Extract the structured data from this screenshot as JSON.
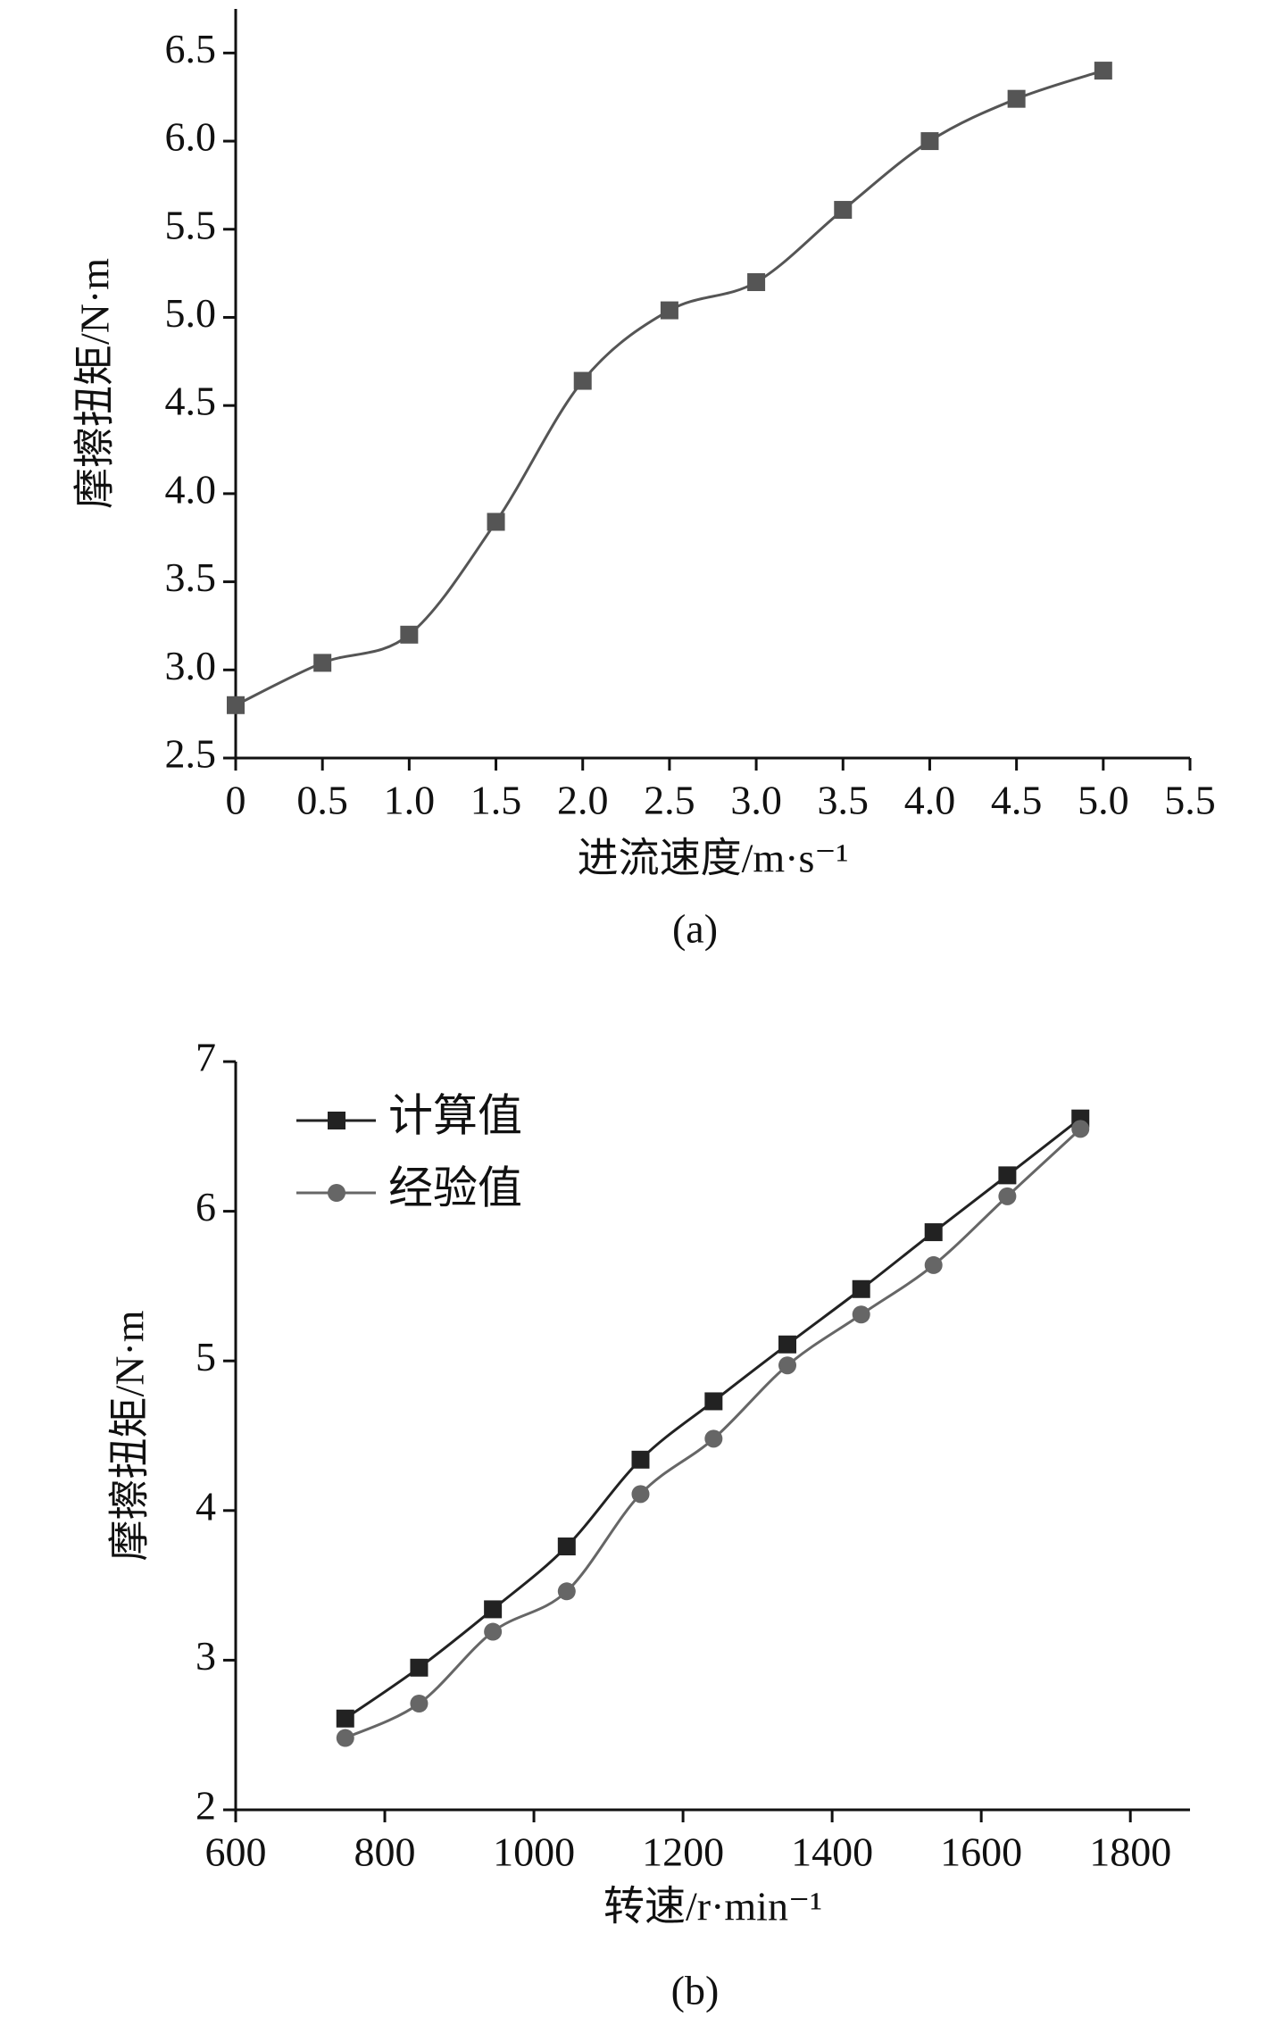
{
  "chart_data": [
    {
      "type": "line",
      "smooth": true,
      "xlabel": "进流速度/m·s⁻¹",
      "ylabel": "摩擦扭矩/N·m",
      "caption": "(a)",
      "x": [
        0,
        0.5,
        1,
        1.5,
        2,
        2.5,
        3,
        3.5,
        4,
        4.5,
        5
      ],
      "values": [
        2.8,
        3.04,
        3.2,
        3.84,
        4.64,
        5.04,
        5.2,
        5.61,
        6.0,
        6.24,
        6.4
      ],
      "color": "#555555",
      "marker": "square",
      "xlim": [
        0,
        5.5
      ],
      "xticks": [
        0,
        0.5,
        {
          "value": 1,
          "label": "1.0"
        },
        1.5,
        {
          "value": 2,
          "label": "2.0"
        },
        2.5,
        {
          "value": 3,
          "label": "3.0"
        },
        3.5,
        {
          "value": 4,
          "label": "4.0"
        },
        4.5,
        {
          "value": 5,
          "label": "5.0"
        },
        5.5
      ],
      "ylim": [
        2.5,
        6.75
      ],
      "yticks": [
        2.5,
        {
          "value": 3,
          "label": "3.0"
        },
        3.5,
        {
          "value": 4,
          "label": "4.0"
        },
        4.5,
        {
          "value": 5,
          "label": "5.0"
        },
        5.5,
        {
          "value": 6,
          "label": "6.0"
        },
        6.5
      ]
    },
    {
      "type": "line",
      "smooth": true,
      "xlabel": "转速/r·min⁻¹",
      "ylabel": "摩擦扭矩/N·m",
      "caption": "(b)",
      "legend": "upper left",
      "x": [
        747,
        846,
        945,
        1044,
        1143,
        1241,
        1340,
        1439,
        1536,
        1635,
        1733
      ],
      "series": [
        {
          "name": "计算值",
          "color": "#222222",
          "marker": "square",
          "values": [
            2.61,
            2.95,
            3.34,
            3.76,
            4.34,
            4.73,
            5.11,
            5.48,
            5.86,
            6.24,
            6.62
          ]
        },
        {
          "name": "经验值",
          "color": "#666666",
          "marker": "circle",
          "values": [
            2.48,
            2.71,
            3.19,
            3.46,
            4.11,
            4.48,
            4.97,
            5.31,
            5.64,
            6.1,
            6.55
          ]
        }
      ],
      "xlim": [
        600,
        1880
      ],
      "xticks": [
        600,
        800,
        1000,
        1200,
        1400,
        1600,
        1800
      ],
      "ylim": [
        2,
        7
      ],
      "yticks": [
        2,
        3,
        4,
        5,
        6,
        7
      ]
    }
  ]
}
